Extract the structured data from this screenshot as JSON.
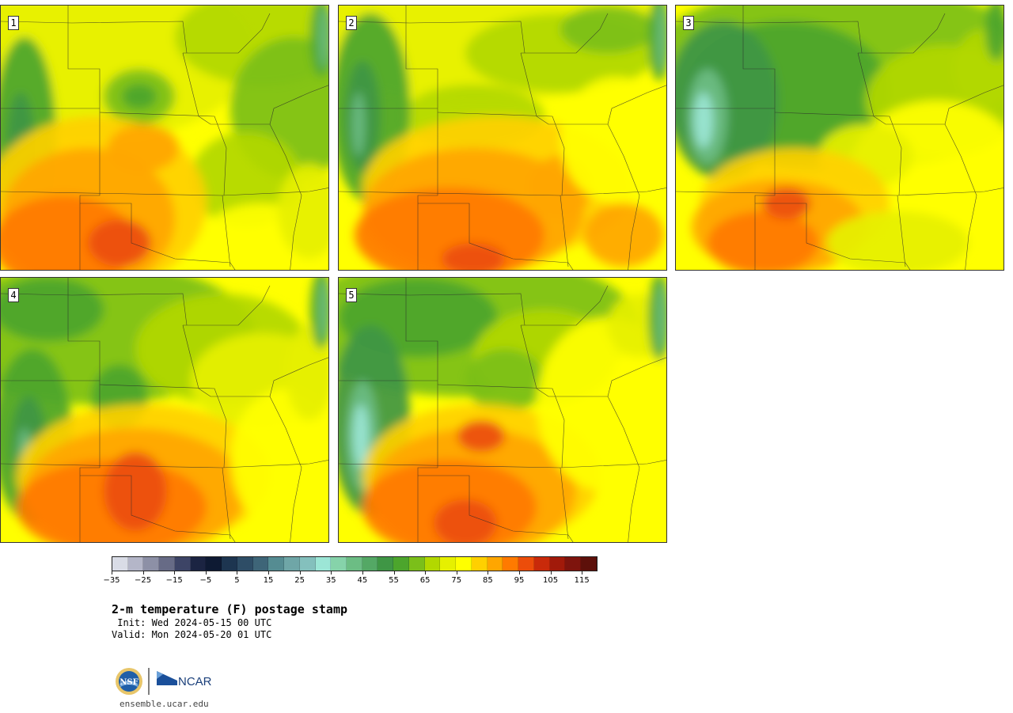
{
  "panels": [
    {
      "number": "1",
      "variant": 0
    },
    {
      "number": "2",
      "variant": 1
    },
    {
      "number": "3",
      "variant": 2
    },
    {
      "number": "4",
      "variant": 3
    },
    {
      "number": "5",
      "variant": 4
    }
  ],
  "colorbar": {
    "colors": [
      "#d9dce6",
      "#b4b6c8",
      "#8d90a6",
      "#676b86",
      "#3d4466",
      "#1b2442",
      "#0e1a33",
      "#1d3550",
      "#2e4d66",
      "#3e6578",
      "#558c92",
      "#6fa6a7",
      "#84c0bd",
      "#9ce6d6",
      "#86d3aa",
      "#6cbd84",
      "#54a865",
      "#3f9645",
      "#4ca52c",
      "#7bbf1a",
      "#b2d800",
      "#e6f000",
      "#ffff00",
      "#ffd000",
      "#ffa600",
      "#ff7a00",
      "#ec4d0a",
      "#c92a0a",
      "#a11a0a",
      "#7e140d",
      "#5d100a"
    ],
    "ticks": [
      "−35",
      "−25",
      "−15",
      "−5",
      "5",
      "15",
      "25",
      "35",
      "45",
      "55",
      "65",
      "75",
      "85",
      "95",
      "105",
      "115"
    ]
  },
  "title": "2-m temperature (F) postage stamp",
  "init": " Init: Wed 2024-05-15 00 UTC",
  "valid": "Valid: Mon 2024-05-20 01 UTC",
  "logos": {
    "nsf": "NSF",
    "ncar": "NCAR"
  },
  "site": "ensemble.ucar.edu"
}
